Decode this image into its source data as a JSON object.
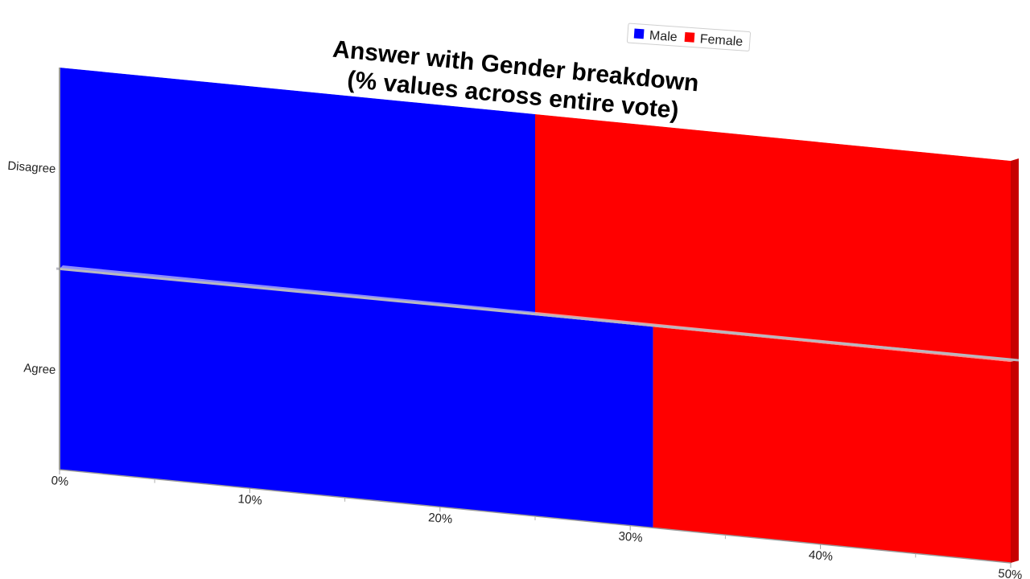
{
  "chart_data": {
    "type": "bar",
    "orientation": "horizontal",
    "stacked": true,
    "title": "Answer with Gender breakdown",
    "subtitle": "(% values across entire vote)",
    "categories": [
      "Disagree",
      "Agree"
    ],
    "series": [
      {
        "name": "Male",
        "color": "#0000ff",
        "values": [
          25,
          31.2
        ]
      },
      {
        "name": "Female",
        "color": "#ff0000",
        "values": [
          25,
          18.8
        ]
      }
    ],
    "x_ticks": [
      "0%",
      "10%",
      "20%",
      "30%",
      "40%",
      "50%"
    ],
    "xlim": [
      0,
      50
    ],
    "legend_position": "top-right",
    "grid": false,
    "perspective": "3d-tilted"
  }
}
